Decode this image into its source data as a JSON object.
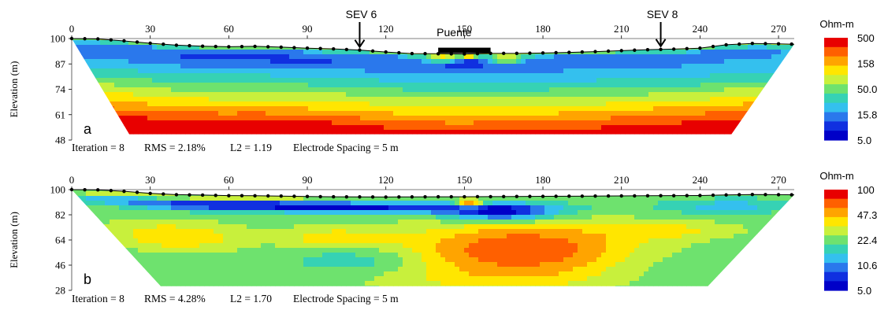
{
  "chart_data": [
    {
      "type": "heatmap",
      "panel_letter": "a",
      "x_ticks": [
        0,
        30,
        60,
        90,
        120,
        150,
        180,
        210,
        240,
        270
      ],
      "xlim": [
        0,
        276
      ],
      "y_ticks": [
        100,
        87,
        74,
        61,
        48
      ],
      "ylim": [
        48,
        100
      ],
      "ylabel": "Elevation (m)",
      "colorbar": {
        "unit": "Ohm-m",
        "ticks": [
          "500",
          "158",
          "50.0",
          "15.8",
          "5.0"
        ],
        "colors": [
          "#e80000",
          "#ff6000",
          "#ffa400",
          "#ffe600",
          "#c8f03c",
          "#6ee26e",
          "#36d2b4",
          "#34c0ee",
          "#2a78ec",
          "#1030e0",
          "#0000c8"
        ]
      },
      "annotations": [
        {
          "label": "SEV 6",
          "x": 110
        },
        {
          "label": "SEV 8",
          "x": 225
        }
      ],
      "bridge": {
        "label": "Puente",
        "x_start": 140,
        "x_end": 160
      },
      "info": {
        "iteration": "Iteration = 8",
        "rms": "RMS = 2.18%",
        "l2": "L2 = 1.19",
        "spacing": "Electrode Spacing = 5 m"
      },
      "surface_elevation": [
        [
          0,
          100
        ],
        [
          10,
          99.8
        ],
        [
          20,
          98.8
        ],
        [
          30,
          97.6
        ],
        [
          40,
          96.6
        ],
        [
          50,
          96.1
        ],
        [
          60,
          95.8
        ],
        [
          70,
          96
        ],
        [
          80,
          95.6
        ],
        [
          90,
          95.1
        ],
        [
          100,
          94.7
        ],
        [
          110,
          94.1
        ],
        [
          120,
          93.1
        ],
        [
          130,
          92.3
        ],
        [
          140,
          92.2
        ],
        [
          150,
          92.1
        ],
        [
          160,
          92.4
        ],
        [
          170,
          92.4
        ],
        [
          180,
          92.6
        ],
        [
          190,
          92.9
        ],
        [
          200,
          93.3
        ],
        [
          210,
          93.8
        ],
        [
          220,
          94.3
        ],
        [
          230,
          94.6
        ],
        [
          240,
          95.1
        ],
        [
          250,
          96.8
        ],
        [
          260,
          97.5
        ],
        [
          270,
          97.3
        ],
        [
          276,
          97.1
        ]
      ],
      "section_bottom": [
        [
          22,
          51
        ],
        [
          252,
          51
        ]
      ]
    },
    {
      "type": "heatmap",
      "panel_letter": "b",
      "x_ticks": [
        0,
        30,
        60,
        90,
        120,
        150,
        180,
        210,
        240,
        270
      ],
      "xlim": [
        0,
        276
      ],
      "y_ticks": [
        100,
        82,
        64,
        46,
        28
      ],
      "ylim": [
        28,
        100
      ],
      "ylabel": "Elevation (m)",
      "colorbar": {
        "unit": "Ohm-m",
        "ticks": [
          "100",
          "47.3",
          "22.4",
          "10.6",
          "5.0"
        ],
        "colors": [
          "#e80000",
          "#ff6000",
          "#ffa400",
          "#ffe600",
          "#c8f03c",
          "#6ee26e",
          "#36d2b4",
          "#34c0ee",
          "#2a78ec",
          "#1030e0",
          "#0000c8"
        ]
      },
      "info": {
        "iteration": "Iteration = 8",
        "rms": "RMS = 4.28%",
        "l2": "L2 = 1.70",
        "spacing": "Electrode Spacing = 5 m"
      },
      "surface_elevation": [
        [
          0,
          100
        ],
        [
          10,
          99.8
        ],
        [
          20,
          98.8
        ],
        [
          30,
          97.3
        ],
        [
          40,
          96.4
        ],
        [
          50,
          96.1
        ],
        [
          60,
          95.7
        ],
        [
          70,
          95.6
        ],
        [
          80,
          95.4
        ],
        [
          90,
          95.1
        ],
        [
          100,
          94.9
        ],
        [
          110,
          94.8
        ],
        [
          120,
          94.7
        ],
        [
          130,
          94.8
        ],
        [
          140,
          94.9
        ],
        [
          150,
          94.9
        ],
        [
          160,
          95
        ],
        [
          170,
          95.1
        ],
        [
          180,
          95.2
        ],
        [
          190,
          95.3
        ],
        [
          200,
          95.4
        ],
        [
          210,
          95.5
        ],
        [
          220,
          95.6
        ],
        [
          230,
          95.7
        ],
        [
          240,
          95.8
        ],
        [
          250,
          96.2
        ],
        [
          260,
          96.5
        ],
        [
          270,
          96.4
        ],
        [
          276,
          96.3
        ]
      ],
      "section_bottom": [
        [
          34,
          31
        ],
        [
          243,
          31
        ]
      ]
    }
  ]
}
